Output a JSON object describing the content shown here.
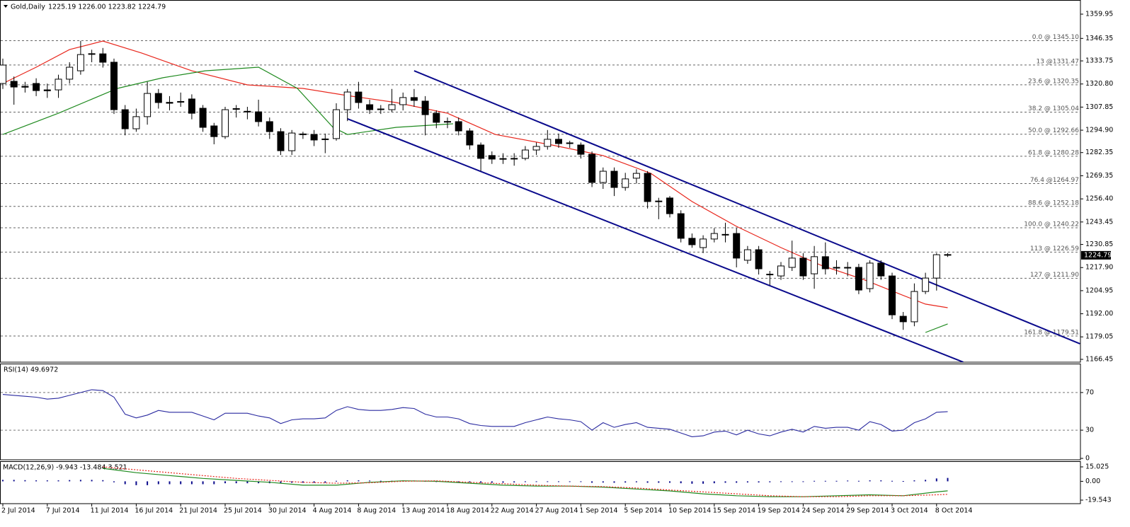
{
  "chart_data": [
    {
      "type": "candlestick",
      "title": "Gold,Daily",
      "ohlc_label": "1225.19 1226.00 1223.82 1224.79",
      "categories": [
        "2 Jul 2014",
        null,
        null,
        null,
        "7 Jul 2014",
        null,
        null,
        null,
        "11 Jul 2014",
        null,
        null,
        null,
        "16 Jul 2014",
        null,
        null,
        null,
        "21 Jul 2014",
        null,
        null,
        null,
        "25 Jul 2014",
        null,
        null,
        null,
        "30 Jul 2014",
        null,
        null,
        null,
        "4 Aug 2014",
        null,
        null,
        null,
        "8 Aug 2014",
        null,
        null,
        null,
        "13 Aug 2014",
        null,
        null,
        null,
        "18 Aug 2014",
        null,
        null,
        null,
        "22 Aug 2014",
        null,
        null,
        null,
        "27 Aug 2014",
        null,
        null,
        null,
        "1 Sep 2014",
        null,
        null,
        null,
        "5 Sep 2014",
        null,
        null,
        null,
        "10 Sep 2014",
        null,
        null,
        null,
        "15 Sep 2014",
        null,
        null,
        null,
        "19 Sep 2014",
        null,
        null,
        null,
        "24 Sep 2014",
        null,
        null,
        null,
        "29 Sep 2014",
        null,
        null,
        null,
        "3 Oct 2014",
        null,
        null,
        null,
        "8 Oct 2014",
        null
      ],
      "open": [
        1321.1,
        1322.3,
        1319.5,
        1321.1,
        1317.5,
        1317.5,
        1323.5,
        1328.2,
        1337.8,
        1337.7,
        1333.0,
        1306.4,
        1295.7,
        1302.5,
        1315.5,
        1310.5,
        1311.0,
        1312.4,
        1307.2,
        1297.3,
        1291.3,
        1307.0,
        1305.5,
        1305.2,
        1299.7,
        1294.1,
        1283.4,
        1292.8,
        1292.5,
        1290.0,
        1290.2,
        1306.4,
        1316.3,
        1309.2,
        1306.8,
        1306.4,
        1309.2,
        1313.2,
        1311.2,
        1304.4,
        1299.8,
        1299.7,
        1294.5,
        1286.6,
        1280.7,
        1279.0,
        1279.1,
        1279.1,
        1283.8,
        1285.8,
        1289.8,
        1287.8,
        1286.6,
        1281.4,
        1265.6,
        1271.9,
        1262.8,
        1268.0,
        1270.7,
        1255.2,
        1256.9,
        1248.1,
        1234.3,
        1229.1,
        1233.9,
        1236.5,
        1237.0,
        1222.0,
        1227.9,
        1214.2,
        1213.2,
        1218.0,
        1223.2,
        1214.4,
        1224.0,
        1218.0,
        1218.0,
        1218.0,
        1206.1,
        1220.4,
        1213.2,
        1190.6,
        1187.5,
        1204.5,
        1212.0,
        1225.19
      ],
      "high": [
        1335,
        1325,
        1322,
        1324,
        1321,
        1326,
        1333,
        1345,
        1340,
        1341,
        1335,
        1309,
        1307,
        1322,
        1318,
        1314,
        1316,
        1315,
        1309,
        1299,
        1308,
        1309,
        1308,
        1312,
        1302,
        1296,
        1295,
        1294,
        1295,
        1293,
        1310,
        1318,
        1322,
        1312,
        1309,
        1318,
        1316,
        1318,
        1314,
        1306,
        1302,
        1302,
        1296,
        1288,
        1283,
        1282,
        1282,
        1286,
        1288,
        1295,
        1293,
        1289,
        1288,
        1283,
        1274,
        1274,
        1271,
        1273,
        1272,
        1257,
        1258,
        1250,
        1237,
        1236,
        1240,
        1243,
        1240,
        1230,
        1230,
        1216,
        1221,
        1233,
        1226,
        1230,
        1232,
        1222,
        1221,
        1220,
        1222,
        1222,
        1215,
        1193,
        1209,
        1215,
        1226,
        1226
      ],
      "low": [
        1318,
        1309.2,
        1316,
        1314,
        1313,
        1313,
        1321,
        1326,
        1333,
        1330,
        1304,
        1292,
        1294,
        1298,
        1307,
        1306,
        1308,
        1301,
        1294,
        1287,
        1290,
        1302,
        1301,
        1297,
        1290,
        1281,
        1281,
        1290,
        1286,
        1282,
        1289,
        1300,
        1307,
        1304,
        1304,
        1305,
        1306,
        1308,
        1292,
        1296,
        1296,
        1292,
        1284,
        1272,
        1276,
        1276,
        1275,
        1278,
        1281,
        1284,
        1285,
        1285,
        1279,
        1263,
        1262,
        1258,
        1261,
        1265,
        1251,
        1245,
        1246,
        1232,
        1229,
        1226,
        1232,
        1232,
        1218,
        1220,
        1214,
        1208,
        1211,
        1216,
        1211,
        1206,
        1214,
        1214,
        1213,
        1203,
        1204,
        1211,
        1189,
        1183,
        1185,
        1203,
        1205,
        1223.82
      ],
      "close": [
        1331.4,
        1319.1,
        1319.0,
        1317.1,
        1317.0,
        1323.5,
        1330.2,
        1337.3,
        1337.4,
        1333.0,
        1306.4,
        1295.7,
        1302.5,
        1315.5,
        1310.4,
        1310.0,
        1310.6,
        1304.4,
        1296.5,
        1291.3,
        1306.4,
        1306.6,
        1305.2,
        1299.7,
        1294.1,
        1283.4,
        1293.3,
        1292.4,
        1289.4,
        1289.6,
        1306.4,
        1316.3,
        1310.4,
        1306.4,
        1306.4,
        1309.2,
        1313.2,
        1311.6,
        1303.6,
        1299.3,
        1299.4,
        1294.5,
        1286.6,
        1279.1,
        1278.7,
        1278.6,
        1278.8,
        1283.8,
        1285.8,
        1289.8,
        1287.4,
        1287.4,
        1281.4,
        1265.6,
        1271.9,
        1262.8,
        1267.6,
        1270.7,
        1254.9,
        1254.8,
        1248.1,
        1234.3,
        1230.7,
        1233.9,
        1237.0,
        1236.1,
        1223.2,
        1227.9,
        1217.2,
        1213.8,
        1218.8,
        1223.2,
        1213.2,
        1224.0,
        1217.2,
        1217.6,
        1217.6,
        1205.3,
        1220.4,
        1213.2,
        1191.4,
        1187.5,
        1204.5,
        1212.0,
        1225.1,
        1224.79
      ],
      "ylim": [
        1164.86,
        1367.88
      ],
      "yticks": [
        1359.95,
        1346.35,
        1333.75,
        {
          "value": 1320.8,
          "label": "1320.80"
        },
        1307.85,
        {
          "value": 1294.9,
          "label": "1294.90"
        },
        1282.35,
        1269.35,
        {
          "value": 1256.4,
          "label": "1256.40"
        },
        1243.45,
        1230.85,
        {
          "value": 1217.9,
          "label": "1217.90"
        },
        1204.95,
        {
          "value": 1192,
          "label": "1192.00"
        },
        1179.05,
        1166.45
      ],
      "levels": [
        {
          "value": 1345.1,
          "label": "0.0 @ 1345.10"
        },
        {
          "value": 1331.47,
          "label": "13 @1331.47"
        },
        {
          "value": 1320.35,
          "label": "23.6 @ 1320.35"
        },
        {
          "value": 1305.04,
          "label": "38.2 @ 1305.04"
        },
        {
          "value": 1292.66,
          "label": "50.0 @ 1292.66"
        },
        {
          "value": 1280.28,
          "label": "61.8 @ 1280.28"
        },
        {
          "value": 1264.97,
          "label": "76.4 @1264.97"
        },
        {
          "value": 1252.18,
          "label": "88.6 @ 1252.18"
        },
        {
          "value": 1240.22,
          "label": "100.0 @ 1240.22"
        },
        {
          "value": 1226.59,
          "label": "113 @ 1226.59"
        },
        {
          "value": 1211.9,
          "label": "127 @ 1211.90"
        },
        {
          "value": 1179.51,
          "label": "161.8 @ 1179.51"
        }
      ],
      "lines": [
        {
          "color": "#e8261c",
          "x": [
            0,
            3,
            6,
            9,
            12.5,
            17,
            22,
            27,
            31,
            35.4,
            40,
            44.3,
            49.4,
            54,
            58.3,
            62,
            66,
            70,
            73.6,
            77.4,
            80.6,
            83,
            85
          ],
          "values": [
            1321.1,
            1330.2,
            1340.1,
            1344.9,
            1338.1,
            1328.2,
            1320.3,
            1318.3,
            1314.3,
            1310.4,
            1304.4,
            1292.5,
            1286.6,
            1280.7,
            1270.7,
            1254.9,
            1241.0,
            1229.1,
            1219.2,
            1211.3,
            1203.3,
            1197.4,
            1195.4
          ]
        },
        {
          "color": "#1f8a1f",
          "x": [
            0,
            5,
            10.3,
            14.4,
            18.2,
            23,
            26.5,
            29.7,
            31,
            35.4,
            40.5,
            60,
            83,
            85
          ],
          "values": [
            1292.5,
            1304.4,
            1318.3,
            1324.3,
            1328.2,
            1330.2,
            1318.3,
            1296.5,
            1292.5,
            1296.5,
            1298.5,
            null,
            1181.5,
            1186.3
          ]
        }
      ],
      "trendlines": [
        {
          "color": "#0a0a8c",
          "x": [
            37,
            96.9
          ],
          "values": [
            1328.2,
            1175.2
          ]
        },
        {
          "color": "#0a0a8c",
          "x": [
            31,
            86.4
          ],
          "values": [
            1301.3,
            1164.9
          ]
        }
      ]
    },
    {
      "type": "line",
      "title": "RSI(14) 49.6972",
      "color": "#2a2aa0",
      "values": [
        68,
        67,
        66,
        65,
        63,
        64,
        67,
        70,
        73,
        72,
        65,
        47,
        43,
        46,
        51,
        49,
        49,
        49,
        45,
        41,
        48,
        48,
        48,
        45,
        43,
        37,
        41,
        42,
        42,
        43,
        51,
        55,
        52,
        51,
        51,
        52,
        54,
        53,
        47,
        44,
        44,
        42,
        37,
        35,
        34,
        34,
        34,
        38,
        41,
        44,
        42,
        41,
        39,
        30,
        38,
        33,
        36,
        38,
        33,
        32,
        31,
        27,
        23,
        24,
        28,
        29,
        25,
        30,
        26,
        24,
        28,
        31,
        28,
        34,
        32,
        33,
        33,
        30,
        39,
        36,
        29,
        30,
        38,
        42,
        49,
        49.7
      ],
      "ylim": [
        0,
        100
      ],
      "yticks": [
        70,
        30,
        0
      ]
    },
    {
      "type": "macd",
      "title": "MACD(12,26,9) -9.943 -13.484 3.521",
      "color": "#0a0a8c",
      "histogram": [
        1.5,
        1.5,
        1.2,
        1.0,
        1.0,
        1.0,
        1.3,
        1.5,
        1.5,
        1.2,
        -1,
        -3,
        -4,
        -4,
        -3,
        -3,
        -3,
        -3,
        -3,
        -3,
        -2,
        -2,
        -2,
        -2,
        -2,
        -2,
        -1.5,
        -1.5,
        -1.5,
        -1.5,
        0.5,
        1,
        1,
        0.8,
        0.6,
        0.6,
        0.8,
        0.8,
        0.4,
        0,
        -0.3,
        -0.5,
        -1,
        -1.5,
        -1.5,
        -1.5,
        -1.2,
        -0.8,
        -0.4,
        0,
        0,
        -0.3,
        -0.6,
        -1.5,
        -1.3,
        -1.5,
        -1.3,
        -1,
        -1.5,
        -1.5,
        -1.5,
        -2,
        -2.5,
        -2.5,
        -2,
        -1.5,
        -1.5,
        -1.2,
        -1.2,
        -1,
        -0.5,
        0,
        0,
        0.5,
        0.5,
        0.5,
        0.8,
        0.5,
        1,
        1,
        0.5,
        0.3,
        1,
        1.5,
        3,
        3.521
      ],
      "main": {
        "color": "#1f8a1f",
        "x": [
          9,
          12,
          15,
          18,
          21,
          24,
          27,
          30,
          33,
          36,
          39,
          42,
          45,
          48,
          51,
          54,
          57,
          60,
          63,
          66,
          69,
          72,
          75,
          78,
          81,
          84,
          85
        ],
        "values": [
          13.5,
          9,
          6,
          3,
          1,
          -1,
          -4,
          -4,
          -1,
          0.5,
          0,
          -2,
          -4,
          -5,
          -5,
          -6,
          -8,
          -10,
          -13,
          -15,
          -16,
          -16,
          -15,
          -14,
          -15,
          -11,
          -9.943
        ]
      },
      "signal": {
        "color": "#e8261c",
        "x": [
          9,
          12,
          15,
          18,
          21,
          24,
          27,
          30,
          33,
          36,
          39,
          42,
          45,
          48,
          51,
          54,
          57,
          60,
          63,
          66,
          69,
          72,
          75,
          78,
          81,
          84,
          85
        ],
        "values": [
          15,
          12,
          9,
          6,
          3,
          1,
          -1,
          -2,
          -1.5,
          0,
          0.5,
          -1,
          -2.5,
          -4,
          -5,
          -5.5,
          -7,
          -9,
          -11,
          -13,
          -15,
          -16,
          -16,
          -15,
          -15,
          -14,
          -13.484
        ]
      },
      "ylim": [
        -23.22,
        20.17
      ],
      "yticks": [
        15.025,
        {
          "value": 0,
          "label": "0.00"
        },
        -19.543
      ]
    }
  ]
}
